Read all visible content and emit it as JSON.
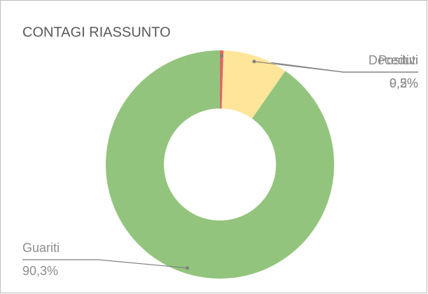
{
  "chart_data": {
    "type": "donut",
    "title": "CONTAGI RIASSUNTO",
    "categories": [
      "Deceduti",
      "Positivi",
      "Guariti"
    ],
    "values": [
      0.5,
      9.2,
      90.3
    ],
    "value_labels": [
      "0,5%",
      "9,2%",
      "90,3%"
    ],
    "colors": [
      "#e06666",
      "#ffe599",
      "#93c47d"
    ]
  }
}
